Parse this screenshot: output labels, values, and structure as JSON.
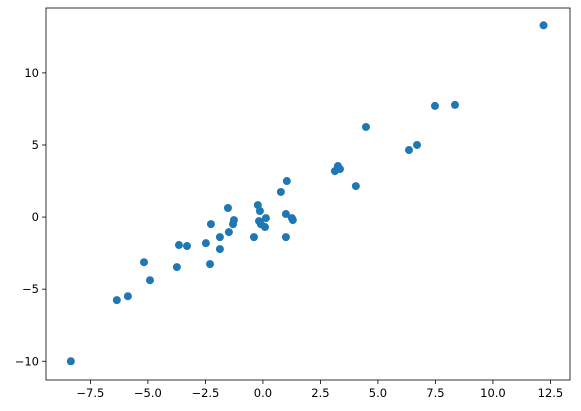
{
  "chart_data": {
    "type": "scatter",
    "color": "#1f77b4",
    "x": [
      12.2,
      -8.35,
      -6.35,
      -5.87,
      -4.91,
      -5.17,
      -3.74,
      -3.65,
      -3.3,
      -2.48,
      -2.3,
      -2.26,
      -1.87,
      -1.87,
      -1.52,
      -1.48,
      -1.26,
      -1.3,
      -0.39,
      -0.22,
      -0.13,
      -0.17,
      -0.09,
      0.09,
      0.13,
      0.78,
      1.0,
      1.04,
      1.0,
      1.26,
      1.3,
      3.13,
      3.26,
      3.35,
      4.04,
      4.48,
      6.35,
      6.7,
      7.48,
      8.35
    ],
    "values": [
      13.3,
      -10.0,
      -5.76,
      -5.49,
      -4.38,
      -3.13,
      -3.47,
      -1.94,
      -2.01,
      -1.81,
      -3.26,
      -0.49,
      -1.39,
      -2.22,
      0.63,
      -1.04,
      -0.21,
      -0.49,
      -1.39,
      0.83,
      0.42,
      -0.28,
      -0.49,
      -0.69,
      -0.07,
      1.74,
      0.21,
      2.5,
      -1.39,
      -0.07,
      -0.21,
      3.19,
      3.54,
      3.33,
      2.15,
      6.25,
      4.65,
      5.0,
      7.71,
      7.78
    ],
    "xlim": [
      -9.43,
      13.35
    ],
    "ylim": [
      -11.3,
      14.5
    ],
    "xticks": [
      {
        "value": -7.5,
        "label": "−7.5"
      },
      {
        "value": -5,
        "label": "−5.0"
      },
      {
        "value": -2.5,
        "label": "−2.5"
      },
      {
        "value": 0,
        "label": "0.0"
      },
      2.5,
      {
        "value": 5,
        "label": "5.0"
      },
      7.5,
      {
        "value": 10,
        "label": "10.0"
      },
      12.5
    ],
    "yticks": [
      {
        "value": -10,
        "label": "−10"
      },
      {
        "value": -5,
        "label": "−5"
      },
      0,
      5,
      10
    ]
  }
}
